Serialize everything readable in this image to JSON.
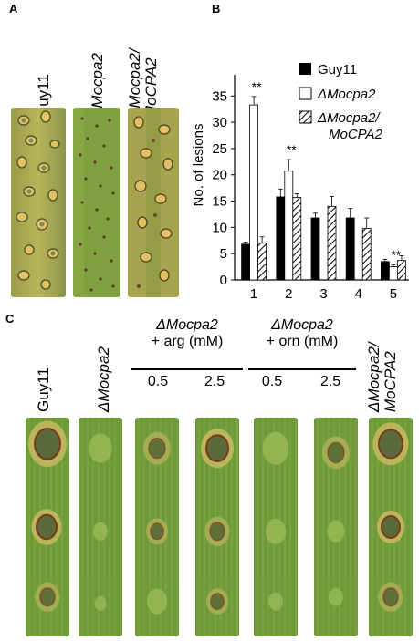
{
  "panel_a": {
    "letter": "A",
    "labels": [
      "Guy11",
      "ΔMocpa2",
      "ΔMocpa2/",
      "MoCPA2"
    ]
  },
  "panel_b": {
    "letter": "B"
  },
  "panel_c": {
    "letter": "C",
    "labels": {
      "guy11": "Guy11",
      "mocpa2": "ΔMocpa2",
      "arg_top": "ΔMocpa2",
      "arg_bottom": "+ arg (mM)",
      "orn_top": "ΔMocpa2",
      "orn_bottom": "+ orn (mM)",
      "comp_top": "ΔMocpa2/",
      "comp_bottom": "MoCPA2",
      "arg_low": "0.5",
      "arg_high": "2.5",
      "orn_low": "0.5",
      "orn_high": "2.5"
    }
  },
  "colors": {
    "guy11": "#000000",
    "mocpa2": "#ffffff",
    "complement": "hatched"
  },
  "chart_data": {
    "type": "bar",
    "title": "",
    "xlabel": "",
    "ylabel": "No. of lesions",
    "categories": [
      "1",
      "2",
      "3",
      "4",
      "5"
    ],
    "yticks": [
      "0",
      "5",
      "10",
      "15",
      "20",
      "25",
      "30",
      "35"
    ],
    "ylim": [
      0,
      38
    ],
    "legend_position": "top-right",
    "series": [
      {
        "name": "Guy11",
        "values": [
          6.8,
          15.8,
          11.8,
          11.8,
          3.5
        ],
        "errors": [
          0.4,
          1.5,
          0.9,
          1.8,
          0.4
        ],
        "sig": [
          "",
          "",
          "",
          "",
          ""
        ]
      },
      {
        "name": "ΔMocpa2",
        "values": [
          33.3,
          20.7,
          0,
          0,
          2.5
        ],
        "errors": [
          1.6,
          2.2,
          0,
          0,
          0.4
        ],
        "sig": [
          "**",
          "**",
          "**",
          "**",
          "**"
        ]
      },
      {
        "name": "ΔMocpa2/ MoCPA2",
        "values": [
          7.0,
          15.7,
          14.0,
          9.8,
          3.7
        ],
        "errors": [
          1.2,
          0.7,
          1.9,
          2.0,
          0.9
        ],
        "sig": [
          "",
          "",
          "",
          "",
          ""
        ]
      }
    ]
  }
}
